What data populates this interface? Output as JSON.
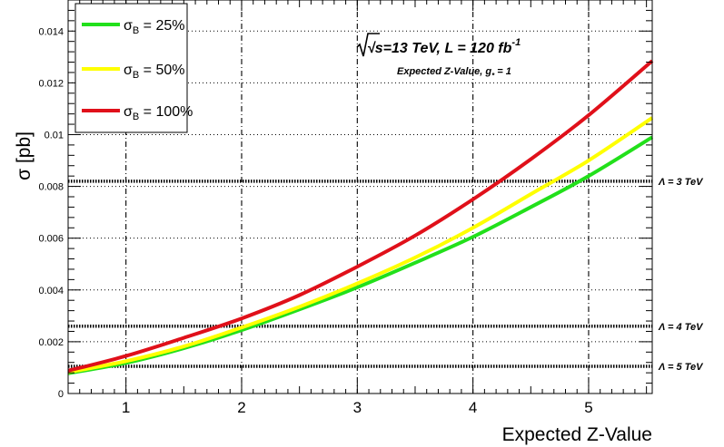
{
  "chart_data": {
    "type": "line",
    "xlabel": "Expected Z-Value",
    "ylabel": "σ [pb]",
    "xlim": [
      0.5,
      5.55
    ],
    "ylim": [
      0,
      0.0152
    ],
    "x_ticks": [
      1,
      2,
      3,
      4,
      5
    ],
    "y_ticks": [
      0,
      0.002,
      0.004,
      0.006,
      0.008,
      0.01,
      0.012,
      0.014
    ],
    "y_tick_labels": [
      "0",
      "0.002",
      "0.004",
      "0.006",
      "0.008",
      "0.01",
      "0.012",
      "0.014"
    ],
    "grid": true,
    "legend_position": "top-left",
    "annotation_energy": "√s=13 TeV, L = 120 fb",
    "annotation_energy_sup": "-1",
    "annotation_sub": "Expected Z-Value, g",
    "annotation_sub_subscript": "*",
    "annotation_sub_tail": " = 1",
    "series": [
      {
        "name": "σ",
        "name_sub": "B",
        "name_tail": " = 25%",
        "color": "#22e01b",
        "x": [
          0.5,
          1.0,
          1.5,
          2.0,
          2.5,
          3.0,
          3.5,
          4.0,
          4.5,
          5.0,
          5.55
        ],
        "y": [
          0.00078,
          0.00118,
          0.00175,
          0.00245,
          0.00325,
          0.0041,
          0.00505,
          0.00605,
          0.0072,
          0.0084,
          0.0099
        ]
      },
      {
        "name": "σ",
        "name_sub": "B",
        "name_tail": " = 50%",
        "color": "#ffff00",
        "x": [
          0.5,
          1.0,
          1.5,
          2.0,
          2.5,
          3.0,
          3.5,
          4.0,
          4.5,
          5.0,
          5.55
        ],
        "y": [
          0.00082,
          0.00125,
          0.00182,
          0.00255,
          0.00335,
          0.00425,
          0.00525,
          0.0064,
          0.0077,
          0.009,
          0.01065
        ]
      },
      {
        "name": "σ",
        "name_sub": "B",
        "name_tail": " = 100%",
        "color": "#e0101a",
        "x": [
          0.5,
          1.0,
          1.5,
          2.0,
          2.5,
          3.0,
          3.5,
          4.0,
          4.5,
          5.0,
          5.55
        ],
        "y": [
          0.00088,
          0.00145,
          0.00215,
          0.0029,
          0.0038,
          0.0049,
          0.0061,
          0.0075,
          0.00905,
          0.01075,
          0.01285
        ]
      }
    ],
    "horizontal_lines": [
      {
        "label": "Λ = 3 TeV",
        "y": 0.0082
      },
      {
        "label": "Λ = 4 TeV",
        "y": 0.0026
      },
      {
        "label": "Λ = 5 TeV",
        "y": 0.00105
      }
    ]
  }
}
